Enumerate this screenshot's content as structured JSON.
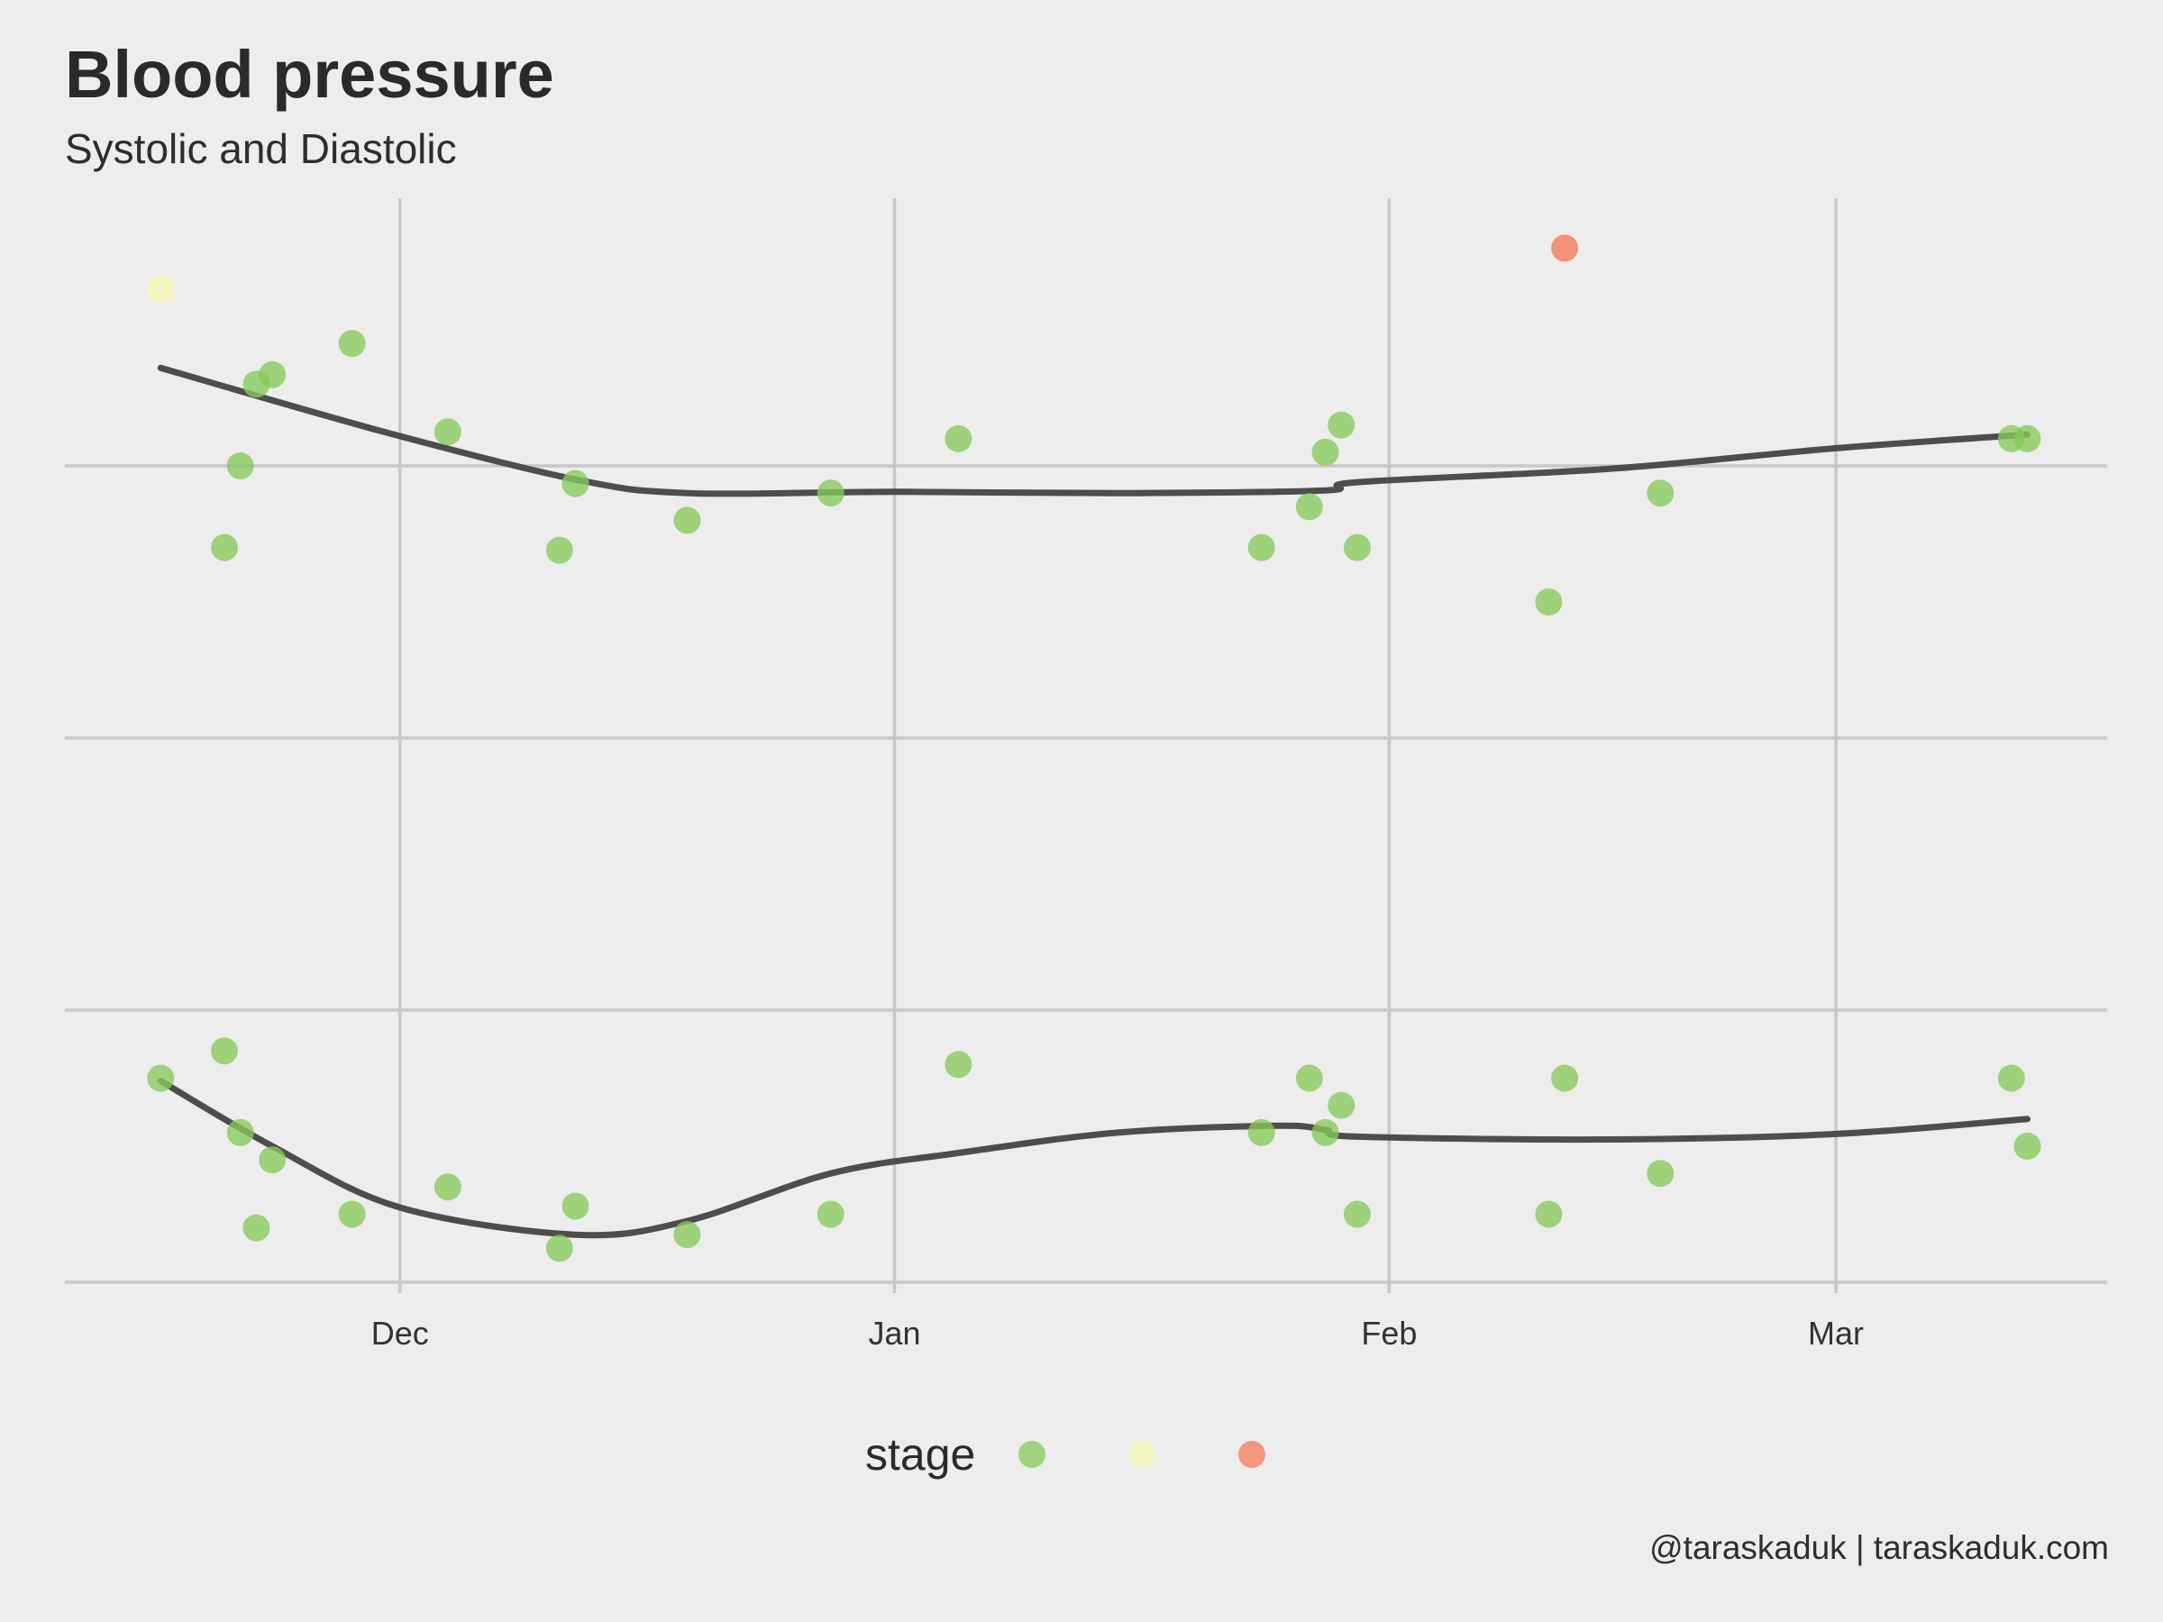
{
  "title": "Blood pressure",
  "subtitle": "Systolic and Diastolic",
  "caption": "@taraskaduk | taraskaduk.com",
  "legend": {
    "title": "stage",
    "keys": [
      {
        "color": "#86c95a"
      },
      {
        "color": "#f7f7b3"
      },
      {
        "color": "#f37a57"
      }
    ]
  },
  "colors": {
    "background": "#ededed",
    "grid": "#c8c8c8",
    "trend": "#4d4d4d",
    "normal": "#86c95a",
    "elevated": "#f7f7b3",
    "high": "#f37a57"
  },
  "chart_data": {
    "type": "scatter",
    "x_axis": {
      "type": "date",
      "ticks": [
        {
          "date": "2018-12-01",
          "label": "Dec"
        },
        {
          "date": "2019-01-01",
          "label": "Jan"
        },
        {
          "date": "2019-02-01",
          "label": "Feb"
        },
        {
          "date": "2019-03-01",
          "label": "Mar"
        }
      ],
      "range": [
        "2018-11-10",
        "2019-03-18"
      ]
    },
    "y_axis": {
      "range": [
        60,
        140
      ],
      "gridlines": [
        60,
        80,
        100,
        120
      ],
      "tick_labels_shown": false
    },
    "grid": true,
    "legend_position": "bottom",
    "series": [
      {
        "points": [
          {
            "x": "2018-11-16",
            "y": 133,
            "stage": "elevated"
          },
          {
            "x": "2018-11-20",
            "y": 114
          },
          {
            "x": "2018-11-21",
            "y": 120
          },
          {
            "x": "2018-11-22",
            "y": 126
          },
          {
            "x": "2018-11-23",
            "y": 126.7
          },
          {
            "x": "2018-11-28",
            "y": 129
          },
          {
            "x": "2018-12-04",
            "y": 122.5
          },
          {
            "x": "2018-12-11",
            "y": 113.8
          },
          {
            "x": "2018-12-12",
            "y": 118.7
          },
          {
            "x": "2018-12-19",
            "y": 116
          },
          {
            "x": "2018-12-28",
            "y": 118
          },
          {
            "x": "2019-01-05",
            "y": 122
          },
          {
            "x": "2019-01-24",
            "y": 114
          },
          {
            "x": "2019-01-27",
            "y": 117
          },
          {
            "x": "2019-01-28",
            "y": 121
          },
          {
            "x": "2019-01-29",
            "y": 123
          },
          {
            "x": "2019-01-30",
            "y": 114
          },
          {
            "x": "2019-02-11",
            "y": 110
          },
          {
            "x": "2019-02-12",
            "y": 136,
            "stage": "high"
          },
          {
            "x": "2019-02-18",
            "y": 118
          },
          {
            "x": "2019-03-12",
            "y": 122
          },
          {
            "x": "2019-03-13",
            "y": 122
          }
        ],
        "trend": [
          {
            "x": "2018-11-16",
            "y": 127.2
          },
          {
            "x": "2018-11-30",
            "y": 122.5
          },
          {
            "x": "2018-12-12",
            "y": 119.0
          },
          {
            "x": "2018-12-19",
            "y": 118.0
          },
          {
            "x": "2019-01-01",
            "y": 118.1
          },
          {
            "x": "2019-01-15",
            "y": 118.0
          },
          {
            "x": "2019-01-28",
            "y": 118.2
          },
          {
            "x": "2019-01-30",
            "y": 118.8
          },
          {
            "x": "2019-02-15",
            "y": 119.8
          },
          {
            "x": "2019-03-01",
            "y": 121.3
          },
          {
            "x": "2019-03-13",
            "y": 122.3
          }
        ]
      },
      {
        "points": [
          {
            "x": "2018-11-16",
            "y": 75
          },
          {
            "x": "2018-11-20",
            "y": 77
          },
          {
            "x": "2018-11-21",
            "y": 71
          },
          {
            "x": "2018-11-22",
            "y": 64
          },
          {
            "x": "2018-11-23",
            "y": 69
          },
          {
            "x": "2018-11-28",
            "y": 65
          },
          {
            "x": "2018-12-04",
            "y": 67
          },
          {
            "x": "2018-12-11",
            "y": 62.5
          },
          {
            "x": "2018-12-12",
            "y": 65.6
          },
          {
            "x": "2018-12-19",
            "y": 63.5
          },
          {
            "x": "2018-12-28",
            "y": 65
          },
          {
            "x": "2019-01-05",
            "y": 76
          },
          {
            "x": "2019-01-24",
            "y": 71
          },
          {
            "x": "2019-01-27",
            "y": 75
          },
          {
            "x": "2019-01-28",
            "y": 71
          },
          {
            "x": "2019-01-29",
            "y": 73
          },
          {
            "x": "2019-01-30",
            "y": 65
          },
          {
            "x": "2019-02-11",
            "y": 65
          },
          {
            "x": "2019-02-12",
            "y": 75
          },
          {
            "x": "2019-02-18",
            "y": 68
          },
          {
            "x": "2019-03-12",
            "y": 75
          },
          {
            "x": "2019-03-13",
            "y": 70
          }
        ],
        "trend": [
          {
            "x": "2018-11-16",
            "y": 74.8
          },
          {
            "x": "2018-11-23",
            "y": 70.0
          },
          {
            "x": "2018-12-01",
            "y": 65.5
          },
          {
            "x": "2018-12-12",
            "y": 63.5
          },
          {
            "x": "2018-12-19",
            "y": 64.5
          },
          {
            "x": "2018-12-28",
            "y": 68.0
          },
          {
            "x": "2019-01-05",
            "y": 69.5
          },
          {
            "x": "2019-01-15",
            "y": 71.0
          },
          {
            "x": "2019-01-25",
            "y": 71.5
          },
          {
            "x": "2019-01-28",
            "y": 71.2
          },
          {
            "x": "2019-01-30",
            "y": 70.7
          },
          {
            "x": "2019-02-15",
            "y": 70.5
          },
          {
            "x": "2019-03-01",
            "y": 70.9
          },
          {
            "x": "2019-03-13",
            "y": 72.0
          }
        ]
      }
    ]
  }
}
